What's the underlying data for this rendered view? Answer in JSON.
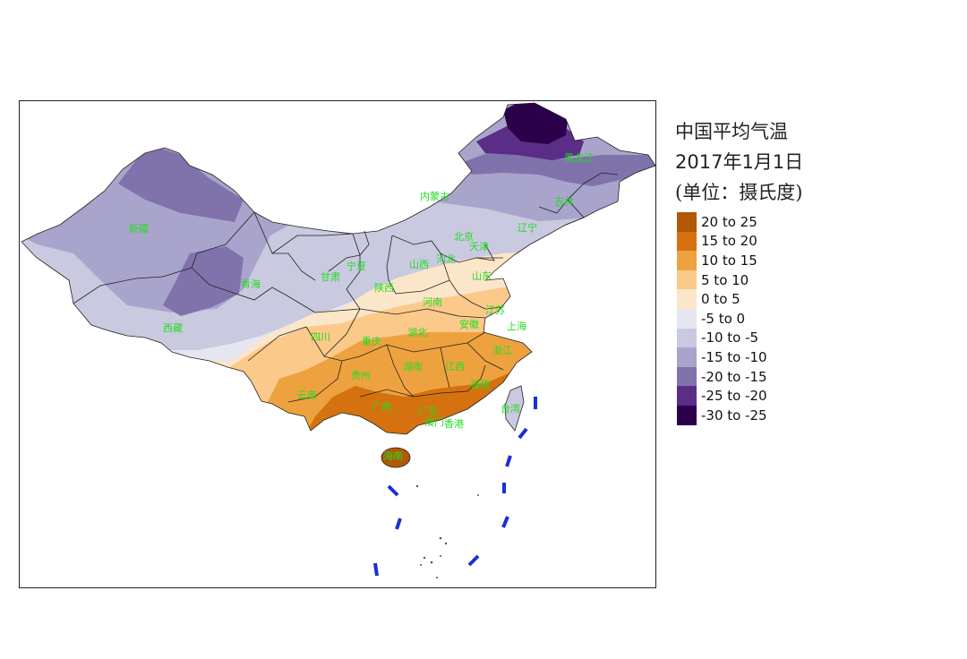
{
  "title": {
    "line1": "中国平均气温",
    "line2": "2017年1月1日",
    "line3": "(单位：摄氏度)"
  },
  "legend": [
    {
      "label": "20 to 25",
      "color": "#b35806"
    },
    {
      "label": "15 to 20",
      "color": "#d5720f"
    },
    {
      "label": "10 to 15",
      "color": "#eea23f"
    },
    {
      "label": "5 to 10",
      "color": "#fbc98a"
    },
    {
      "label": "0 to 5",
      "color": "#fce6c9"
    },
    {
      "label": "-5 to 0",
      "color": "#e6e6f0"
    },
    {
      "label": "-10 to -5",
      "color": "#c9c9e0"
    },
    {
      "label": "-15 to -10",
      "color": "#a9a4cc"
    },
    {
      "label": "-20 to -15",
      "color": "#8073ac"
    },
    {
      "label": "-25 to -20",
      "color": "#5a2d87"
    },
    {
      "label": "-30 to -25",
      "color": "#2d004b"
    }
  ],
  "provinces": [
    {
      "name": "新疆"
    },
    {
      "name": "西藏"
    },
    {
      "name": "青海"
    },
    {
      "name": "甘肃"
    },
    {
      "name": "宁夏"
    },
    {
      "name": "内蒙古"
    },
    {
      "name": "黑龙江"
    },
    {
      "name": "吉林"
    },
    {
      "name": "辽宁"
    },
    {
      "name": "北京"
    },
    {
      "name": "天津"
    },
    {
      "name": "河北"
    },
    {
      "name": "山西"
    },
    {
      "name": "陕西"
    },
    {
      "name": "山东"
    },
    {
      "name": "河南"
    },
    {
      "name": "江苏"
    },
    {
      "name": "安徽"
    },
    {
      "name": "上海"
    },
    {
      "name": "四川"
    },
    {
      "name": "重庆"
    },
    {
      "name": "湖北"
    },
    {
      "name": "浙江"
    },
    {
      "name": "贵州"
    },
    {
      "name": "湖南"
    },
    {
      "name": "江西"
    },
    {
      "name": "福建"
    },
    {
      "name": "云南"
    },
    {
      "name": "广西"
    },
    {
      "name": "广东"
    },
    {
      "name": "香港"
    },
    {
      "name": "澳门"
    },
    {
      "name": "台湾"
    },
    {
      "name": "海南"
    }
  ]
}
